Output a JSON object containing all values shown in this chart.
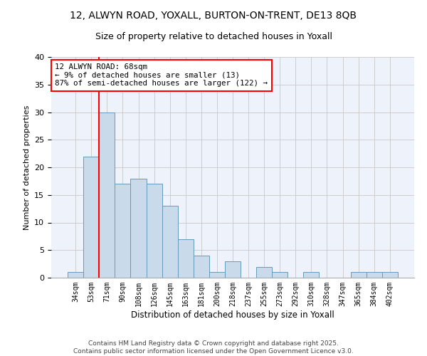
{
  "title1": "12, ALWYN ROAD, YOXALL, BURTON-ON-TRENT, DE13 8QB",
  "title2": "Size of property relative to detached houses in Yoxall",
  "xlabel": "Distribution of detached houses by size in Yoxall",
  "ylabel": "Number of detached properties",
  "categories": [
    "34sqm",
    "53sqm",
    "71sqm",
    "90sqm",
    "108sqm",
    "126sqm",
    "145sqm",
    "163sqm",
    "181sqm",
    "200sqm",
    "218sqm",
    "237sqm",
    "255sqm",
    "273sqm",
    "292sqm",
    "310sqm",
    "328sqm",
    "347sqm",
    "365sqm",
    "384sqm",
    "402sqm"
  ],
  "values": [
    1,
    22,
    30,
    17,
    18,
    17,
    13,
    7,
    4,
    1,
    3,
    0,
    2,
    1,
    0,
    1,
    0,
    0,
    1,
    1,
    1
  ],
  "bar_color": "#c9daea",
  "bar_edge_color": "#6699bb",
  "annotation_text": "12 ALWYN ROAD: 68sqm\n← 9% of detached houses are smaller (13)\n87% of semi-detached houses are larger (122) →",
  "redline_x": 1.5,
  "ylim": [
    0,
    40
  ],
  "yticks": [
    0,
    5,
    10,
    15,
    20,
    25,
    30,
    35,
    40
  ],
  "footer": "Contains HM Land Registry data © Crown copyright and database right 2025.\nContains public sector information licensed under the Open Government Licence v3.0.",
  "bg_color": "#eef2fb",
  "grid_color": "#c8c8c8",
  "title1_fontsize": 10,
  "title2_fontsize": 9,
  "ann_fontsize": 7.8,
  "ylabel_fontsize": 8,
  "xlabel_fontsize": 8.5
}
